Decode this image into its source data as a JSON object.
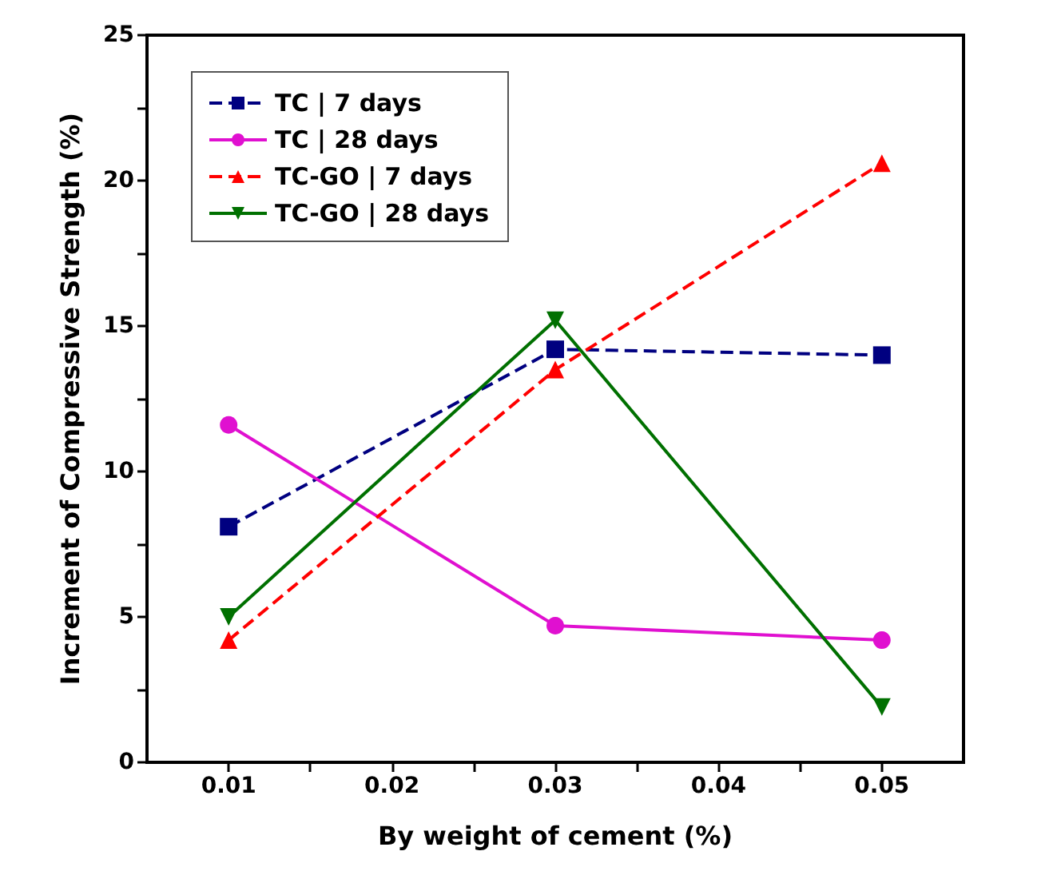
{
  "chart_data": {
    "type": "line",
    "xlabel": "By weight of cement (%)",
    "ylabel": "Increment of Compressive Strength (%)",
    "x": [
      0.01,
      0.03,
      0.05
    ],
    "series": [
      {
        "name": "TC | 7 days",
        "color": "#000080",
        "values": [
          8.1,
          14.2,
          14.0
        ],
        "marker": "square",
        "line_style": "dashed"
      },
      {
        "name": "TC | 28 days",
        "color": "#e010d0",
        "values": [
          11.6,
          4.7,
          4.2
        ],
        "marker": "circle",
        "line_style": "solid"
      },
      {
        "name": "TC-GO | 7 days",
        "color": "#ff0000",
        "values": [
          4.2,
          13.5,
          20.6
        ],
        "marker": "triangle",
        "line_style": "dashed"
      },
      {
        "name": "TC-GO | 28 days",
        "color": "#007000",
        "values": [
          5.0,
          15.2,
          1.9
        ],
        "marker": "triangle-down",
        "line_style": "solid"
      }
    ],
    "xlim": [
      0.005,
      0.055
    ],
    "xticks": [
      0.01,
      {
        "value": 0.015,
        "label": null
      },
      0.02,
      {
        "value": 0.025,
        "label": null
      },
      0.03,
      {
        "value": 0.035,
        "label": null
      },
      0.04,
      {
        "value": 0.045,
        "label": null
      },
      0.05
    ],
    "ylim": [
      0,
      25
    ],
    "yticks": [
      0,
      {
        "value": 2.5,
        "label": null
      },
      5,
      {
        "value": 7.5,
        "label": null
      },
      10,
      {
        "value": 12.5,
        "label": null
      },
      15,
      {
        "value": 17.5,
        "label": null
      },
      20,
      {
        "value": 22.5,
        "label": null
      },
      25
    ],
    "grid": false,
    "legend": "top left"
  }
}
